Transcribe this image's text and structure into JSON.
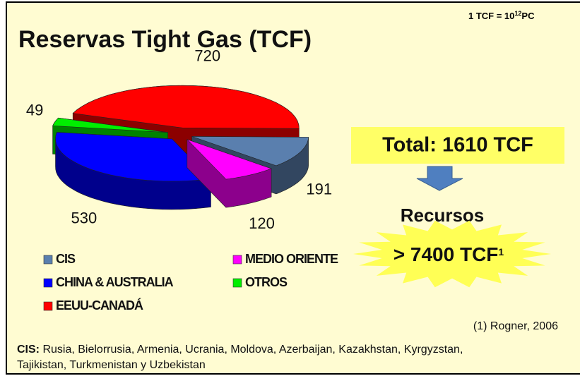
{
  "unit_note": {
    "text": "1 TCF = 10",
    "sup": "12",
    "tail": "PC"
  },
  "chart_data": {
    "type": "pie",
    "title": "Reservas Tight Gas (TCF)",
    "categories": [
      "CIS",
      "CHINA & AUSTRALIA",
      "EEUU-CANADÁ",
      "MEDIO ORIENTE",
      "OTROS"
    ],
    "values": [
      191,
      530,
      720,
      120,
      49
    ],
    "colors": [
      "#5a7fae",
      "#0000ff",
      "#ff0000",
      "#ff00ff",
      "#00ee00"
    ],
    "total": "Total: 1610 TCF",
    "resources_label": "Recursos",
    "resources_value": {
      "text": "> 7400 TCF",
      "sup": "1"
    },
    "source": "(1) Rogner, 2006"
  },
  "footnote": {
    "label": "CIS:",
    "lines": [
      " Rusia, Bielorrusia, Armenia, Ucrania, Moldova, Azerbaijan, Kazakhstan, Kyrgyzstan,",
      "Tajikistan, Turkmenistan y Uzbekistan"
    ]
  }
}
